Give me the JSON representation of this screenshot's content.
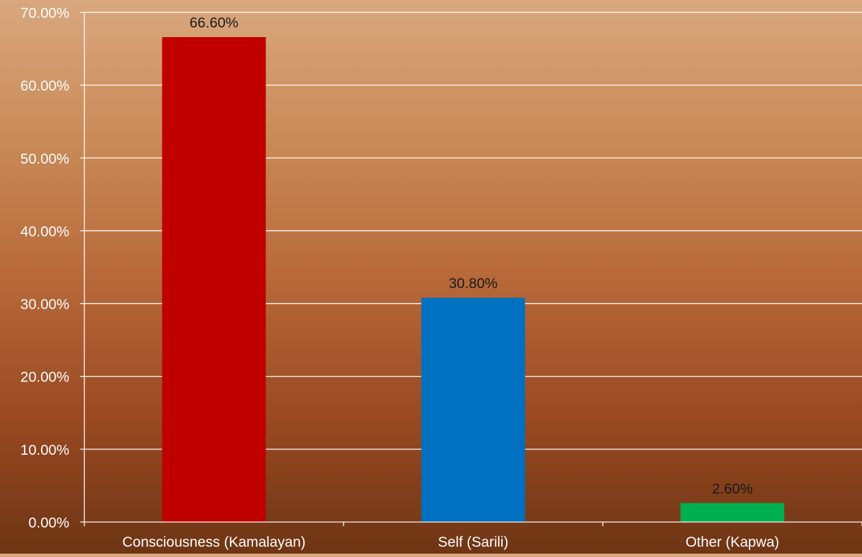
{
  "chart_data": {
    "type": "bar",
    "categories": [
      "Consciousness (Kamalayan)",
      "Self (Sarili)",
      "Other (Kapwa)"
    ],
    "values": [
      66.6,
      30.8,
      2.6
    ],
    "value_labels": [
      "66.60%",
      "30.80%",
      "2.60%"
    ],
    "colors": [
      "#c00000",
      "#0070c0",
      "#00b050"
    ],
    "ylim": [
      0,
      70
    ],
    "yticks": [
      0,
      10,
      20,
      30,
      40,
      50,
      60,
      70
    ],
    "ytick_labels": [
      "0.00%",
      "10.00%",
      "20.00%",
      "30.00%",
      "40.00%",
      "50.00%",
      "60.00%",
      "70.00%"
    ],
    "title": "",
    "xlabel": "",
    "ylabel": "",
    "grid": true,
    "legend": "none"
  }
}
